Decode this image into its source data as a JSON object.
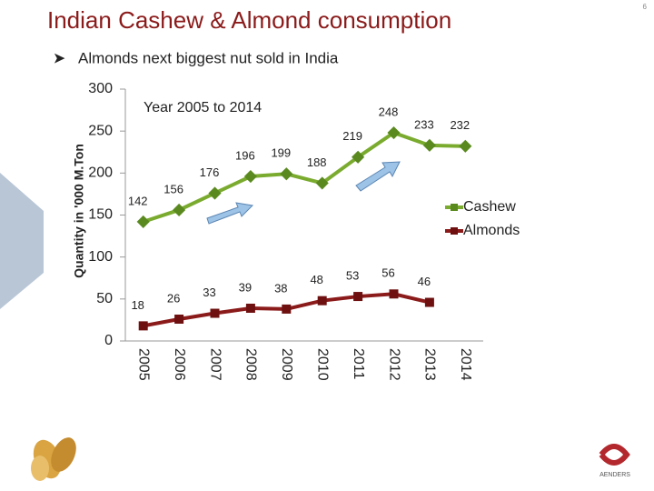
{
  "page_number": "6",
  "bullet": "Almonds next biggest nut sold in India",
  "logo_text": "AENDERS",
  "chart_data": {
    "type": "line",
    "title": "Indian Cashew & Almond consumption",
    "annotation": "Year 2005 to 2014",
    "y_label": "Quantity in '000 M.Ton",
    "categories": [
      "2005",
      "2006",
      "2007",
      "2008",
      "2009",
      "2010",
      "2011",
      "2012",
      "2013",
      "2014"
    ],
    "series": [
      {
        "name": "Cashew",
        "color": "#7aab2f",
        "marker_color": "#5a8a1f",
        "values": [
          142,
          156,
          176,
          196,
          199,
          188,
          219,
          248,
          233,
          232
        ]
      },
      {
        "name": "Almonds",
        "color": "#8b1a1a",
        "marker_color": "#6e1010",
        "values": [
          18,
          26,
          33,
          39,
          38,
          48,
          53,
          56,
          46,
          null
        ]
      }
    ],
    "ylim": [
      0,
      300
    ],
    "yticks": [
      0,
      50,
      100,
      150,
      200,
      250,
      300
    ],
    "grid": false,
    "legend": "right"
  }
}
